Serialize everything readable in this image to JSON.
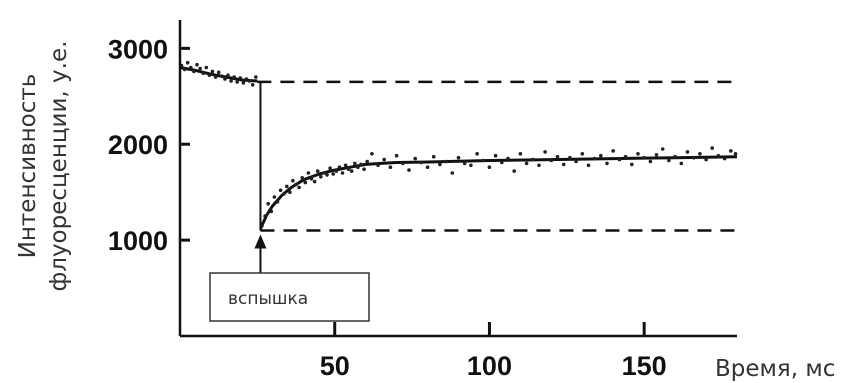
{
  "chart_data": {
    "type": "scatter",
    "xlabel": "Время, мс",
    "ylabel": [
      "Интенсивность",
      "флуоресценции, у.е."
    ],
    "xlim": [
      0,
      180
    ],
    "ylim": [
      0,
      3400
    ],
    "x_ticks": [
      50,
      100,
      150
    ],
    "x_tick_labels": [
      "50",
      "100",
      "150"
    ],
    "y_ticks": [
      1000,
      2000,
      3000
    ],
    "y_tick_labels": [
      "1000",
      "2000",
      "3000"
    ],
    "grid": false,
    "legend": "none",
    "colors": {
      "points": "#222222",
      "lines": "#111111"
    },
    "reference_lines": [
      {
        "style": "dashed",
        "y": 2650,
        "x_from": 25,
        "x_to": 180
      },
      {
        "style": "dashed",
        "y": 1100,
        "x_from": 26,
        "x_to": 180
      }
    ],
    "flash": {
      "x": 26,
      "y_from": 2650,
      "y_to": 1100,
      "arrow_to_y": 1100
    },
    "annotation": {
      "text": "вспышка",
      "anchor_x": 26
    },
    "series": [
      {
        "kind": "scatter",
        "x": [
          0.5,
          1.5,
          2.5,
          3.5,
          4.5,
          5.5,
          6.5,
          7.5,
          8.5,
          9.5,
          10.5,
          11.5,
          12.5,
          13.5,
          14.5,
          15.5,
          16.5,
          17.5,
          18.5,
          19.5,
          20.5,
          21.5,
          22.5,
          23.5,
          24.5,
          26.5,
          27.5,
          28.5,
          29.5,
          30.5,
          31.5,
          32.5,
          33.5,
          34.5,
          35.5,
          36.5,
          37.5,
          38.5,
          39.5,
          40.5,
          41.5,
          42.5,
          43.5,
          44.5,
          45.5,
          46.5,
          47.5,
          48.5,
          49.5,
          50.5,
          51.5,
          52.5,
          53.5,
          54.5,
          55.5,
          56.5,
          57.5,
          58.5,
          59.5,
          60.5,
          62,
          64,
          66,
          68,
          70,
          72,
          74,
          76,
          78,
          80,
          82,
          84,
          86,
          88,
          90,
          92,
          94,
          96,
          98,
          100,
          102,
          104,
          106,
          108,
          110,
          112,
          114,
          116,
          118,
          120,
          122,
          124,
          126,
          128,
          130,
          132,
          134,
          136,
          138,
          140,
          142,
          144,
          146,
          148,
          150,
          152,
          154,
          156,
          158,
          160,
          162,
          164,
          166,
          168,
          170,
          172,
          174,
          176,
          178,
          179.5
        ],
        "y": [
          2820,
          2780,
          2850,
          2800,
          2760,
          2830,
          2790,
          2740,
          2800,
          2720,
          2760,
          2700,
          2750,
          2710,
          2680,
          2720,
          2660,
          2700,
          2650,
          2690,
          2640,
          2680,
          2660,
          2620,
          2700,
          1150,
          1250,
          1380,
          1300,
          1450,
          1400,
          1520,
          1480,
          1560,
          1500,
          1620,
          1580,
          1550,
          1650,
          1600,
          1700,
          1640,
          1610,
          1720,
          1660,
          1700,
          1680,
          1750,
          1690,
          1720,
          1760,
          1700,
          1780,
          1740,
          1720,
          1800,
          1760,
          1790,
          1740,
          1820,
          1900,
          1780,
          1840,
          1760,
          1880,
          1800,
          1730,
          1850,
          1810,
          1760,
          1870,
          1790,
          1820,
          1700,
          1860,
          1800,
          1780,
          1900,
          1830,
          1760,
          1880,
          1810,
          1850,
          1720,
          1900,
          1800,
          1840,
          1780,
          1920,
          1830,
          1870,
          1790,
          1860,
          1820,
          1900,
          1780,
          1850,
          1880,
          1800,
          1930,
          1840,
          1870,
          1790,
          1900,
          1860,
          1820,
          1890,
          1950,
          1830,
          1870,
          1800,
          1920,
          1860,
          1900,
          1840,
          1960,
          1880,
          1850,
          1930,
          1900
        ]
      },
      {
        "kind": "fit",
        "x": [
          0,
          5,
          10,
          15,
          20,
          25
        ],
        "y": [
          2800,
          2770,
          2730,
          2700,
          2670,
          2660
        ]
      },
      {
        "kind": "fit",
        "x": [
          26,
          28,
          30,
          33,
          36,
          40,
          45,
          50,
          55,
          60,
          65,
          70,
          80,
          100,
          120,
          140,
          160,
          180
        ],
        "y": [
          1120,
          1260,
          1360,
          1470,
          1550,
          1630,
          1690,
          1730,
          1760,
          1790,
          1800,
          1810,
          1815,
          1830,
          1840,
          1850,
          1860,
          1870
        ]
      }
    ]
  }
}
